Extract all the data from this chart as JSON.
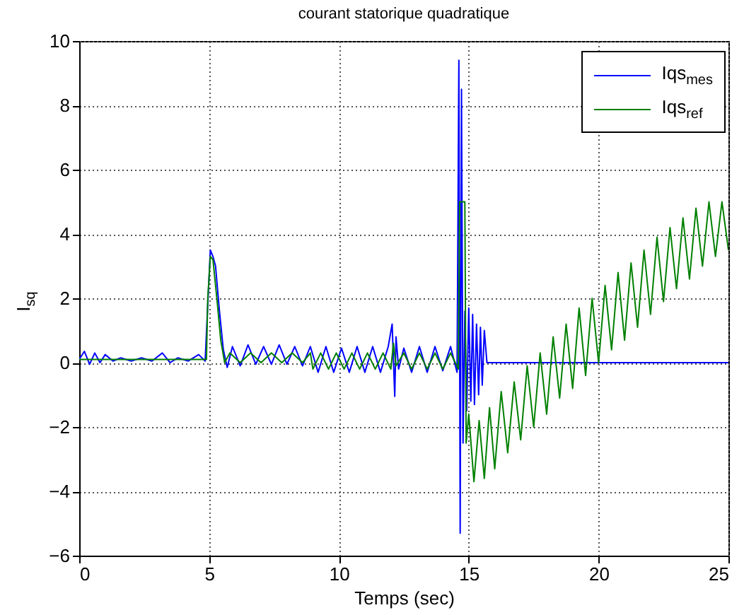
{
  "chart_data": {
    "type": "line",
    "title": "courant statorique quadratique",
    "xlabel": "Temps (sec)",
    "ylabel": "I$_{sq}$",
    "xlim": [
      0,
      25
    ],
    "ylim": [
      -6,
      10
    ],
    "xticks": [
      0,
      5,
      10,
      15,
      20,
      25
    ],
    "yticks": [
      -6,
      -4,
      -2,
      0,
      2,
      4,
      6,
      8,
      10
    ],
    "grid": true,
    "legend": "top right",
    "line_style": "solid",
    "series": [
      {
        "name": "Iqs$_{mes}$",
        "color": "#0000ff",
        "x": [
          0,
          0.2,
          0.4,
          0.6,
          0.8,
          1.0,
          1.3,
          1.6,
          2.0,
          2.4,
          2.8,
          3.2,
          3.5,
          3.8,
          4.2,
          4.6,
          4.85,
          4.95,
          5.05,
          5.15,
          5.25,
          5.4,
          5.55,
          5.7,
          5.9,
          6.2,
          6.5,
          6.8,
          7.1,
          7.4,
          7.7,
          8.0,
          8.3,
          8.6,
          8.9,
          9.2,
          9.5,
          9.8,
          10.1,
          10.4,
          10.7,
          11.0,
          11.3,
          11.6,
          11.9,
          12.05,
          12.15,
          12.2,
          12.3,
          12.5,
          12.8,
          13.1,
          13.4,
          13.7,
          14.0,
          14.3,
          14.55,
          14.62,
          14.67,
          14.72,
          14.78,
          14.85,
          14.92,
          15.0,
          15.08,
          15.15,
          15.22,
          15.3,
          15.38,
          15.45,
          15.52,
          15.6,
          15.7,
          25
        ],
        "values": [
          0.1,
          0.35,
          -0.05,
          0.3,
          0.0,
          0.25,
          0.05,
          0.15,
          0.05,
          0.15,
          0.05,
          0.3,
          0.0,
          0.15,
          0.05,
          0.25,
          0.05,
          1.8,
          3.5,
          3.3,
          3.0,
          1.6,
          0.4,
          -0.15,
          0.5,
          -0.1,
          0.55,
          -0.05,
          0.5,
          -0.05,
          0.55,
          -0.05,
          0.5,
          -0.1,
          0.5,
          -0.3,
          0.5,
          -0.3,
          0.45,
          -0.3,
          0.5,
          -0.3,
          0.5,
          -0.3,
          0.5,
          1.2,
          -1.05,
          0.8,
          -0.2,
          0.45,
          -0.3,
          0.5,
          -0.3,
          0.5,
          -0.25,
          0.5,
          -0.3,
          9.4,
          -5.3,
          8.5,
          -2.5,
          1.6,
          -1.5,
          1.7,
          -1.2,
          1.5,
          -1.3,
          1.2,
          -1.0,
          1.1,
          -0.7,
          1.0,
          0,
          0
        ]
      },
      {
        "name": "Iqs$_{ref}$",
        "color": "#008000",
        "x": [
          0,
          4.9,
          4.95,
          5.05,
          5.15,
          5.3,
          5.45,
          5.6,
          5.8,
          6.2,
          6.6,
          7.0,
          7.4,
          7.8,
          8.2,
          8.6,
          8.9,
          9.0,
          9.3,
          9.6,
          9.9,
          10.2,
          10.5,
          10.8,
          11.1,
          11.4,
          11.7,
          12.0,
          12.1,
          12.2,
          12.5,
          12.8,
          13.1,
          13.4,
          13.7,
          14.0,
          14.3,
          14.6,
          14.65,
          14.85,
          14.9,
          15.0,
          15.2,
          15.4,
          15.6,
          15.8,
          16.0,
          16.25,
          16.5,
          16.75,
          17.0,
          17.25,
          17.5,
          17.75,
          18.0,
          18.25,
          18.5,
          18.75,
          19.0,
          19.25,
          19.5,
          19.75,
          20.0,
          20.25,
          20.5,
          20.75,
          21.0,
          21.25,
          21.5,
          21.75,
          22.0,
          22.25,
          22.5,
          22.75,
          23.0,
          23.25,
          23.5,
          23.75,
          24.0,
          24.25,
          24.5,
          24.75,
          25.0
        ],
        "values": [
          0.1,
          0.1,
          2.0,
          3.3,
          3.2,
          2.0,
          0.7,
          0.0,
          0.3,
          0.0,
          0.3,
          0.0,
          0.3,
          0.0,
          0.3,
          0.0,
          0.3,
          -0.2,
          0.3,
          -0.2,
          0.3,
          -0.2,
          0.3,
          -0.2,
          0.3,
          -0.2,
          0.3,
          -0.2,
          0.6,
          -0.1,
          0.3,
          -0.2,
          0.3,
          -0.2,
          0.3,
          -0.2,
          0.3,
          -0.2,
          5.0,
          5.0,
          -2.5,
          -1.6,
          -3.7,
          -1.8,
          -3.6,
          -1.4,
          -3.3,
          -0.9,
          -2.8,
          -0.6,
          -2.4,
          -0.1,
          -2.0,
          0.3,
          -1.6,
          0.8,
          -1.1,
          1.2,
          -0.8,
          1.7,
          -0.4,
          2.0,
          0.0,
          2.4,
          0.4,
          2.8,
          0.7,
          3.1,
          1.1,
          3.5,
          1.5,
          3.9,
          1.9,
          4.2,
          2.3,
          4.5,
          2.6,
          4.8,
          3.0,
          5.0,
          3.3,
          5.0,
          3.5
        ]
      }
    ]
  }
}
